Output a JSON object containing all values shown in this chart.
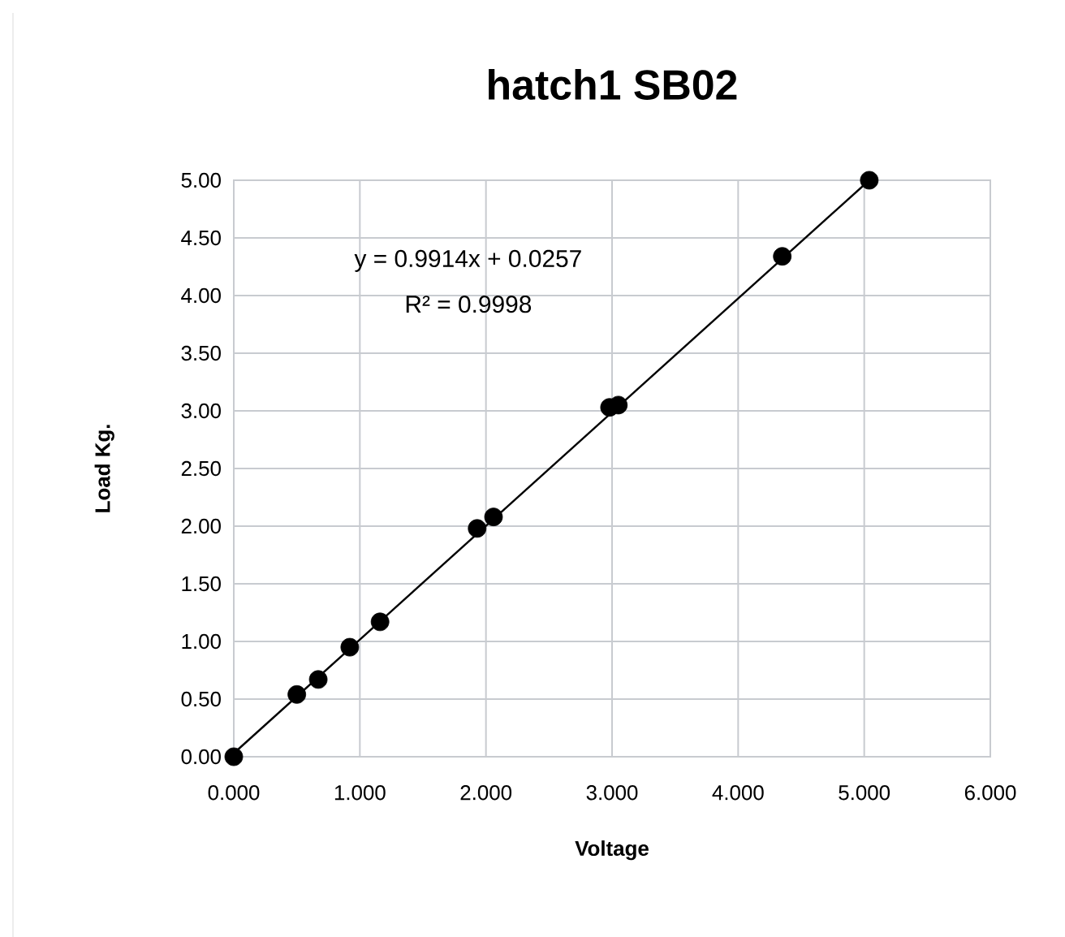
{
  "chart_data": {
    "type": "scatter",
    "title": "hatch1 SB02",
    "xlabel": "Voltage",
    "ylabel": "Load Kg.",
    "x": [
      0,
      0.5,
      0.67,
      0.92,
      1.16,
      1.93,
      2.06,
      2.98,
      3.05,
      4.35,
      5.04
    ],
    "series": [
      {
        "type": "scatter",
        "color": "#000000",
        "marker": "circle",
        "values": [
          0,
          0.54,
          0.67,
          0.95,
          1.17,
          1.98,
          2.08,
          3.03,
          3.05,
          4.34,
          5.0
        ]
      },
      {
        "type": "line",
        "color": "#000000",
        "marker": "none",
        "x": [
          0,
          5.04
        ],
        "values": [
          0.03,
          5.0
        ]
      }
    ],
    "annotations": [
      "y = 0.9914x + 0.0257",
      "R² = 0.9998"
    ],
    "xlim": [
      0,
      6
    ],
    "ylim": [
      0,
      5
    ],
    "xticks": [
      {
        "value": 0,
        "label": "0.000"
      },
      {
        "value": 1,
        "label": "1.000"
      },
      {
        "value": 2,
        "label": "2.000"
      },
      {
        "value": 3,
        "label": "3.000"
      },
      {
        "value": 4,
        "label": "4.000"
      },
      {
        "value": 5,
        "label": "5.000"
      },
      {
        "value": 6,
        "label": "6.000"
      }
    ],
    "yticks": [
      {
        "value": 0,
        "label": "0.00"
      },
      {
        "value": 0.5,
        "label": "0.50"
      },
      {
        "value": 1,
        "label": "1.00"
      },
      {
        "value": 1.5,
        "label": "1.50"
      },
      {
        "value": 2,
        "label": "2.00"
      },
      {
        "value": 2.5,
        "label": "2.50"
      },
      {
        "value": 3,
        "label": "3.00"
      },
      {
        "value": 3.5,
        "label": "3.50"
      },
      {
        "value": 4,
        "label": "4.00"
      },
      {
        "value": 4.5,
        "label": "4.50"
      },
      {
        "value": 5,
        "label": "5.00"
      }
    ],
    "grid": true
  }
}
